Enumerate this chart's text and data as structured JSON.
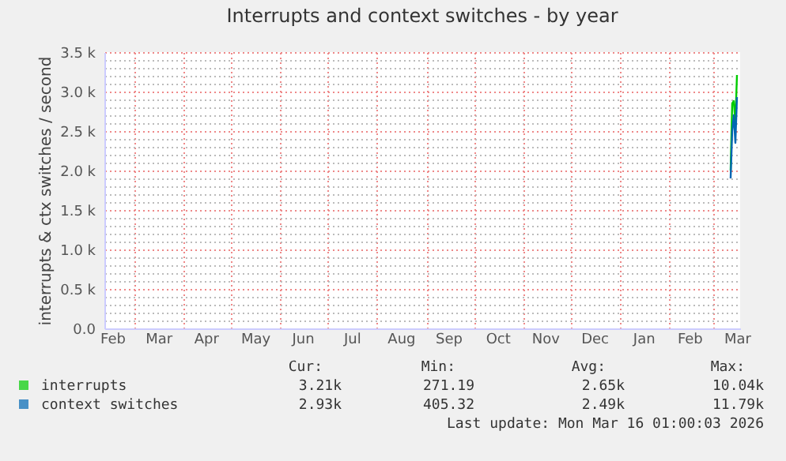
{
  "chart_data": {
    "type": "line",
    "title": "Interrupts and context switches - by year",
    "ylabel": "interrupts & ctx switches / second",
    "x": [
      "2026-03-12",
      "2026-03-13",
      "2026-03-14",
      "2026-03-15",
      "2026-03-16"
    ],
    "series": [
      {
        "name": "interrupts",
        "color": "#00cc00",
        "values": [
          2000,
          2850,
          2880,
          2600,
          3210
        ]
      },
      {
        "name": "context switches",
        "color": "#0066b3",
        "values": [
          1900,
          2500,
          2700,
          2350,
          2930
        ]
      }
    ],
    "xlim": [
      "2025-02-10",
      "2026-03-18"
    ],
    "xticks": [
      {
        "value": "2025-02-15",
        "label": "Feb"
      },
      {
        "value": "2025-03-01",
        "label": null
      },
      {
        "value": "2025-03-16",
        "label": "Mar"
      },
      {
        "value": "2025-04-01",
        "label": null
      },
      {
        "value": "2025-04-15",
        "label": "Apr"
      },
      {
        "value": "2025-05-01",
        "label": null
      },
      {
        "value": "2025-05-16",
        "label": "May"
      },
      {
        "value": "2025-06-01",
        "label": null
      },
      {
        "value": "2025-06-15",
        "label": "Jun"
      },
      {
        "value": "2025-07-01",
        "label": null
      },
      {
        "value": "2025-07-16",
        "label": "Jul"
      },
      {
        "value": "2025-08-01",
        "label": null
      },
      {
        "value": "2025-08-16",
        "label": "Aug"
      },
      {
        "value": "2025-09-01",
        "label": null
      },
      {
        "value": "2025-09-15",
        "label": "Sep"
      },
      {
        "value": "2025-10-01",
        "label": null
      },
      {
        "value": "2025-10-16",
        "label": "Oct"
      },
      {
        "value": "2025-11-01",
        "label": null
      },
      {
        "value": "2025-11-15",
        "label": "Nov"
      },
      {
        "value": "2025-12-01",
        "label": null
      },
      {
        "value": "2025-12-16",
        "label": "Dec"
      },
      {
        "value": "2026-01-01",
        "label": null
      },
      {
        "value": "2026-01-16",
        "label": "Jan"
      },
      {
        "value": "2026-02-01",
        "label": null
      },
      {
        "value": "2026-02-14",
        "label": "Feb"
      },
      {
        "value": "2026-03-01",
        "label": null
      },
      {
        "value": "2026-03-16",
        "label": "Mar"
      }
    ],
    "ylim": [
      0,
      3500
    ],
    "yticks": [
      {
        "value": 0,
        "label": "0.0"
      },
      {
        "value": 100,
        "label": null
      },
      {
        "value": 200,
        "label": null
      },
      {
        "value": 300,
        "label": null
      },
      {
        "value": 400,
        "label": null
      },
      {
        "value": 500,
        "label": "0.5 k"
      },
      {
        "value": 600,
        "label": null
      },
      {
        "value": 700,
        "label": null
      },
      {
        "value": 800,
        "label": null
      },
      {
        "value": 900,
        "label": null
      },
      {
        "value": 1000,
        "label": "1.0 k"
      },
      {
        "value": 1100,
        "label": null
      },
      {
        "value": 1200,
        "label": null
      },
      {
        "value": 1300,
        "label": null
      },
      {
        "value": 1400,
        "label": null
      },
      {
        "value": 1500,
        "label": "1.5 k"
      },
      {
        "value": 1600,
        "label": null
      },
      {
        "value": 1700,
        "label": null
      },
      {
        "value": 1800,
        "label": null
      },
      {
        "value": 1900,
        "label": null
      },
      {
        "value": 2000,
        "label": "2.0 k"
      },
      {
        "value": 2100,
        "label": null
      },
      {
        "value": 2200,
        "label": null
      },
      {
        "value": 2300,
        "label": null
      },
      {
        "value": 2400,
        "label": null
      },
      {
        "value": 2500,
        "label": "2.5 k"
      },
      {
        "value": 2600,
        "label": null
      },
      {
        "value": 2700,
        "label": null
      },
      {
        "value": 2800,
        "label": null
      },
      {
        "value": 2900,
        "label": null
      },
      {
        "value": 3000,
        "label": "3.0 k"
      },
      {
        "value": 3100,
        "label": null
      },
      {
        "value": 3200,
        "label": null
      },
      {
        "value": 3300,
        "label": null
      },
      {
        "value": 3400,
        "label": null
      },
      {
        "value": 3500,
        "label": "3.5 k"
      }
    ],
    "grid": true,
    "legend": "bottom",
    "marker": "none",
    "line_style": "solid",
    "annotations": [
      "Cur:",
      "Min:",
      "Avg:",
      "Max:",
      "3.21k",
      "271.19",
      "2.65k",
      "10.04k",
      "2.93k",
      "405.32",
      "2.49k",
      "11.79k",
      "Last update: Mon Mar 16 01:00:03 2026"
    ]
  }
}
